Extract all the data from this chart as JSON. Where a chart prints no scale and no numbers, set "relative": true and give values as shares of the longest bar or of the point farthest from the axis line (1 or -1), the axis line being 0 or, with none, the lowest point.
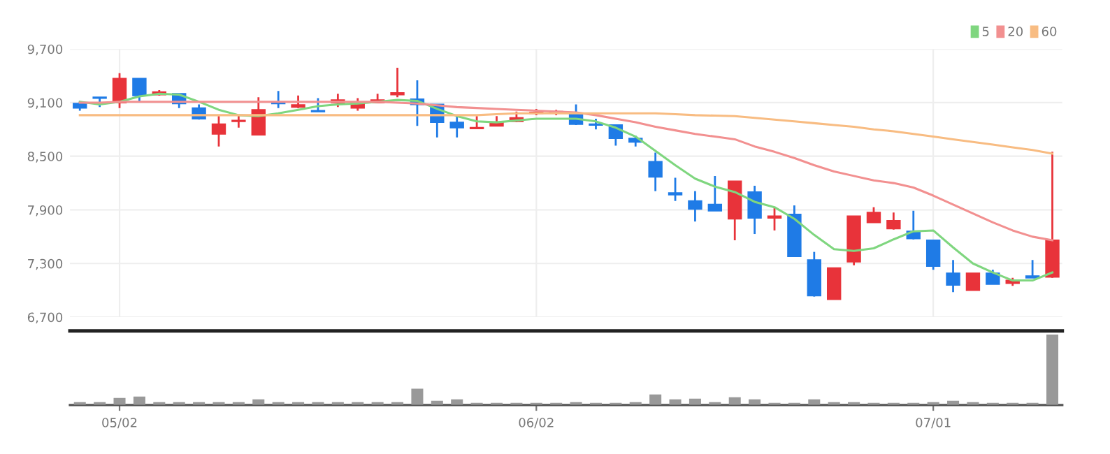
{
  "chart_data": [
    {
      "type": "candlestick",
      "categories": [
        null,
        null,
        null,
        null,
        null,
        null,
        null,
        null,
        null,
        null,
        null,
        null,
        null,
        null,
        null,
        null,
        null,
        null,
        null,
        null,
        null,
        null,
        null,
        null,
        null,
        null,
        null,
        null,
        null,
        null,
        null,
        null,
        null,
        null,
        null,
        null,
        null,
        null,
        null,
        null,
        null,
        null,
        null,
        null,
        null,
        null,
        null,
        null,
        null,
        null
      ],
      "ohlc": [
        [
          9090,
          9110,
          9010,
          9040
        ],
        [
          9160,
          9160,
          9050,
          9150
        ],
        [
          9100,
          9430,
          9040,
          9370
        ],
        [
          9370,
          9370,
          9100,
          9180
        ],
        [
          9190,
          9240,
          9180,
          9220
        ],
        [
          9200,
          9200,
          9040,
          9090
        ],
        [
          9040,
          9080,
          8910,
          8920
        ],
        [
          8750,
          8950,
          8610,
          8860
        ],
        [
          8890,
          8960,
          8820,
          8900
        ],
        [
          8740,
          9160,
          8740,
          9020
        ],
        [
          9100,
          9230,
          9040,
          9090
        ],
        [
          9050,
          9180,
          9040,
          9075
        ],
        [
          9010,
          9150,
          9000,
          9000
        ],
        [
          9100,
          9200,
          9050,
          9130
        ],
        [
          9040,
          9150,
          9010,
          9100
        ],
        [
          9100,
          9200,
          9100,
          9130
        ],
        [
          9190,
          9490,
          9160,
          9210
        ],
        [
          9140,
          9350,
          8840,
          9080
        ],
        [
          9080,
          9080,
          8710,
          8880
        ],
        [
          8880,
          8950,
          8710,
          8820
        ],
        [
          8810,
          8950,
          8810,
          8820
        ],
        [
          8840,
          8950,
          8840,
          8880
        ],
        [
          8890,
          9000,
          8880,
          8930
        ],
        [
          8980,
          9030,
          8960,
          8990
        ],
        [
          8990,
          9020,
          8960,
          9000
        ],
        [
          8980,
          9080,
          8850,
          8860
        ],
        [
          8860,
          8920,
          8800,
          8850
        ],
        [
          8850,
          8850,
          8620,
          8700
        ],
        [
          8700,
          8730,
          8610,
          8660
        ],
        [
          8440,
          8540,
          8110,
          8270
        ],
        [
          8090,
          8260,
          8000,
          8070
        ],
        [
          8000,
          8110,
          7770,
          7910
        ],
        [
          7960,
          8280,
          7890,
          7890
        ],
        [
          7800,
          8220,
          7560,
          8220
        ],
        [
          8100,
          8170,
          7630,
          7810
        ],
        [
          7810,
          7930,
          7670,
          7830
        ],
        [
          7850,
          7950,
          7380,
          7380
        ],
        [
          7340,
          7430,
          6930,
          6940
        ],
        [
          6900,
          7250,
          6900,
          7250
        ],
        [
          7320,
          7830,
          7280,
          7830
        ],
        [
          7760,
          7930,
          7760,
          7870
        ],
        [
          7690,
          7870,
          7680,
          7780
        ],
        [
          7660,
          7890,
          7570,
          7580
        ],
        [
          7560,
          7560,
          7230,
          7270
        ],
        [
          7190,
          7340,
          6980,
          7060
        ],
        [
          7000,
          7190,
          7000,
          7190
        ],
        [
          7190,
          7230,
          7070,
          7070
        ],
        [
          7080,
          7140,
          7050,
          7110
        ],
        [
          7160,
          7340,
          7140,
          7140
        ],
        [
          7150,
          8550,
          7140,
          7560
        ]
      ],
      "colors": [
        "#1f7be6",
        "#1f7be6",
        "#e8333a",
        "#1f7be6",
        "#e8333a",
        "#1f7be6",
        "#1f7be6",
        "#e8333a",
        "#e8333a",
        "#e8333a",
        "#1f7be6",
        "#e8333a",
        "#1f7be6",
        "#e8333a",
        "#e8333a",
        "#e8333a",
        "#e8333a",
        "#1f7be6",
        "#1f7be6",
        "#1f7be6",
        "#e8333a",
        "#e8333a",
        "#e8333a",
        "#e8333a",
        "#e8333a",
        "#1f7be6",
        "#1f7be6",
        "#1f7be6",
        "#1f7be6",
        "#1f7be6",
        "#1f7be6",
        "#1f7be6",
        "#1f7be6",
        "#e8333a",
        "#1f7be6",
        "#e8333a",
        "#1f7be6",
        "#1f7be6",
        "#e8333a",
        "#e8333a",
        "#e8333a",
        "#e8333a",
        "#1f7be6",
        "#1f7be6",
        "#1f7be6",
        "#e8333a",
        "#1f7be6",
        "#e8333a",
        "#1f7be6",
        "#e8333a"
      ],
      "series": [
        {
          "type": "line",
          "name": "5",
          "color": "#7fd67f",
          "values": [
            9110,
            9080,
            9110,
            9170,
            9200,
            9190,
            9110,
            9020,
            8960,
            8950,
            8980,
            9020,
            9060,
            9080,
            9090,
            9110,
            9130,
            9120,
            9030,
            8950,
            8890,
            8880,
            8900,
            8920,
            8920,
            8920,
            8890,
            8820,
            8720,
            8560,
            8400,
            8250,
            8160,
            8100,
            7990,
            7930,
            7800,
            7620,
            7460,
            7440,
            7470,
            7570,
            7660,
            7670,
            7480,
            7300,
            7200,
            7110,
            7110,
            7200
          ]
        },
        {
          "type": "line",
          "name": "20",
          "color": "#f29090",
          "values": [
            9100,
            9100,
            9110,
            9110,
            9110,
            9110,
            9110,
            9110,
            9110,
            9110,
            9110,
            9110,
            9110,
            9110,
            9110,
            9110,
            9100,
            9090,
            9070,
            9050,
            9040,
            9030,
            9020,
            9010,
            9000,
            8990,
            8960,
            8920,
            8880,
            8830,
            8790,
            8750,
            8720,
            8690,
            8610,
            8550,
            8480,
            8400,
            8330,
            8280,
            8230,
            8200,
            8150,
            8060,
            7960,
            7860,
            7760,
            7670,
            7600,
            7560
          ]
        },
        {
          "type": "line",
          "name": "60",
          "color": "#f8bc82",
          "values": [
            8960,
            8960,
            8960,
            8960,
            8960,
            8960,
            8960,
            8960,
            8960,
            8960,
            8960,
            8960,
            8960,
            8960,
            8960,
            8960,
            8960,
            8960,
            8960,
            8960,
            8960,
            8970,
            8980,
            8980,
            8980,
            8980,
            8980,
            8980,
            8980,
            8980,
            8970,
            8960,
            8955,
            8950,
            8930,
            8910,
            8890,
            8870,
            8850,
            8830,
            8800,
            8780,
            8750,
            8720,
            8690,
            8660,
            8630,
            8600,
            8570,
            8530
          ]
        }
      ],
      "ylim": [
        6700,
        9700
      ],
      "yticks": [
        {
          "value": 6700,
          "label": "6,700"
        },
        {
          "value": 7300,
          "label": "7,300"
        },
        {
          "value": 7900,
          "label": "7,900"
        },
        {
          "value": 8500,
          "label": "8,500"
        },
        {
          "value": 9100,
          "label": "9,100"
        },
        {
          "value": 9700,
          "label": "9,700"
        }
      ],
      "grid": true,
      "legend": "top right",
      "tick_labels": "y"
    },
    {
      "type": "bar",
      "relative": true,
      "color": "#999999",
      "categories": [
        null,
        null,
        "05/02",
        null,
        null,
        null,
        null,
        null,
        null,
        null,
        null,
        null,
        null,
        null,
        null,
        null,
        null,
        null,
        null,
        null,
        null,
        null,
        null,
        "06/02",
        null,
        null,
        null,
        null,
        null,
        null,
        null,
        null,
        null,
        null,
        null,
        null,
        null,
        null,
        null,
        null,
        null,
        null,
        null,
        "07/01",
        null,
        null,
        null,
        null,
        null,
        null
      ],
      "values": [
        0.04,
        0.04,
        0.1,
        0.12,
        0.04,
        0.04,
        0.04,
        0.04,
        0.04,
        0.08,
        0.04,
        0.04,
        0.04,
        0.04,
        0.04,
        0.04,
        0.04,
        0.23,
        0.06,
        0.08,
        0.03,
        0.03,
        0.03,
        0.03,
        0.03,
        0.04,
        0.03,
        0.03,
        0.04,
        0.15,
        0.08,
        0.09,
        0.04,
        0.11,
        0.08,
        0.03,
        0.03,
        0.08,
        0.04,
        0.04,
        0.03,
        0.03,
        0.03,
        0.04,
        0.06,
        0.04,
        0.03,
        0.03,
        0.03,
        1
      ],
      "tick_labels": "x"
    }
  ]
}
